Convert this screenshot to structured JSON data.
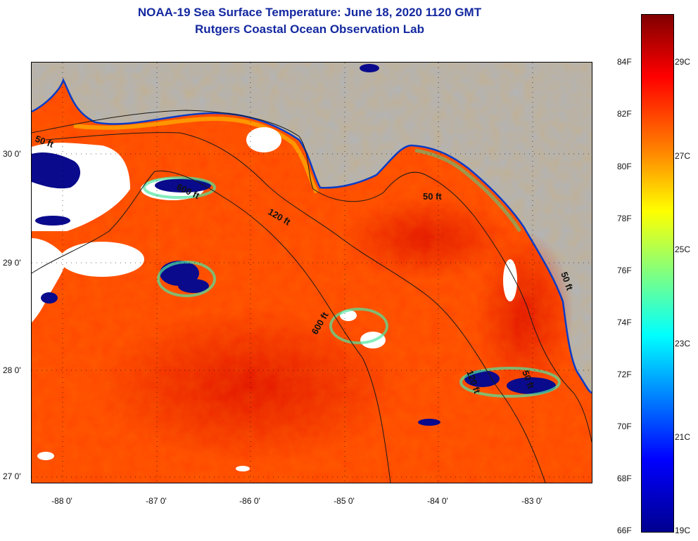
{
  "title": {
    "line1": "NOAA-19 Sea Surface Temperature:  June 18, 2020 1120 GMT",
    "line2": "Rutgers Coastal Ocean Observation Lab"
  },
  "map": {
    "latitude_labels": [
      "30 0'",
      "29 0'",
      "28 0'",
      "27 0'"
    ],
    "longitude_labels": [
      "-88 0'",
      "-87 0'",
      "-86 0'",
      "-85 0'",
      "-84 0'",
      "-83 0'"
    ],
    "depth_contour_labels": [
      "50 ft",
      "600 ft",
      "120 ft",
      "50 ft",
      "600 ft",
      "120 ft",
      "50 ft",
      "50 ft"
    ],
    "colors": {
      "land": "#b4b4b4",
      "sst_warm": "#ff3c00",
      "sst_hot": "#e61400",
      "cloud": "#ffffff",
      "cold_edge": "#0a0a8c"
    }
  },
  "colorbar": {
    "fahrenheit_labels": [
      "84F",
      "82F",
      "80F",
      "78F",
      "76F",
      "74F",
      "72F",
      "70F",
      "68F",
      "66F"
    ],
    "celsius_labels": [
      "29C",
      "27C",
      "25C",
      "23C",
      "21C",
      "19C"
    ]
  }
}
